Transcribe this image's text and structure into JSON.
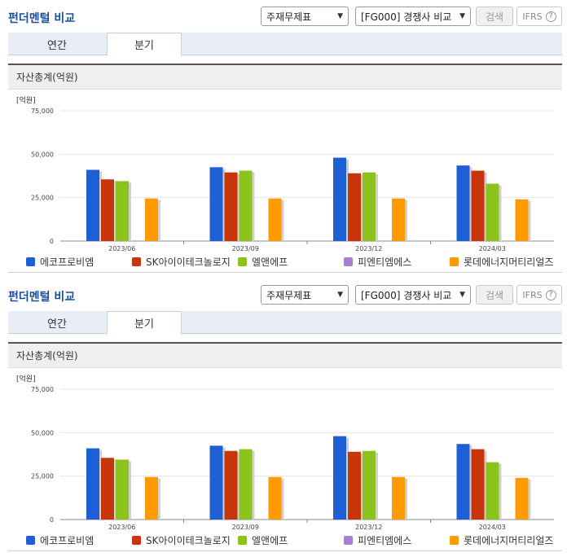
{
  "panels": [
    {
      "title": "펀더멘털 비교",
      "select_statement": "주재무제표",
      "select_group": "[FG000] 경쟁사 비교",
      "search_label": "검색",
      "ifrs_label": "IFRS",
      "help_label": "?",
      "tabs": [
        {
          "label": "연간"
        },
        {
          "label": "분기"
        }
      ],
      "chart_header": "자산총계(억원)"
    },
    {
      "title": "펀더멘털 비교",
      "select_statement": "주재무제표",
      "select_group": "[FG000] 경쟁사 비교",
      "search_label": "검색",
      "ifrs_label": "IFRS",
      "help_label": "?",
      "tabs": [
        {
          "label": "연간"
        },
        {
          "label": "분기"
        }
      ],
      "chart_header": "자산총계(억원)"
    }
  ],
  "chart_data": [
    {
      "type": "bar",
      "title": "자산총계(억원)",
      "unit_label": "[억원]",
      "categories": [
        "2023/06",
        "2023/09",
        "2023/12",
        "2024/03"
      ],
      "ylim": [
        0,
        75000
      ],
      "yticks": [
        0,
        25000,
        50000,
        75000
      ],
      "ytick_labels": [
        "0",
        "25,000",
        "50,000",
        "75,000"
      ],
      "grid": true,
      "legend_position": "bottom",
      "series": [
        {
          "name": "에코프로비엠",
          "color": "#1f5fd6",
          "values": [
            41000,
            42500,
            48000,
            43500
          ]
        },
        {
          "name": "SK아이이테크놀로지",
          "color": "#c9350a",
          "values": [
            35500,
            39500,
            39000,
            40500
          ]
        },
        {
          "name": "엘앤에프",
          "color": "#8cc21c",
          "values": [
            34500,
            40500,
            39500,
            33000
          ]
        },
        {
          "name": "피엔티엠에스",
          "color": "#a77fd6",
          "values": [
            0,
            0,
            0,
            0
          ]
        },
        {
          "name": "롯데에너지머티리얼즈",
          "color": "#ff9a00",
          "values": [
            24500,
            24500,
            24500,
            24000
          ]
        }
      ]
    },
    {
      "type": "bar",
      "title": "자산총계(억원)",
      "unit_label": "[억원]",
      "categories": [
        "2023/06",
        "2023/09",
        "2023/12",
        "2024/03"
      ],
      "ylim": [
        0,
        75000
      ],
      "yticks": [
        0,
        25000,
        50000,
        75000
      ],
      "ytick_labels": [
        "0",
        "25,000",
        "50,000",
        "75,000"
      ],
      "grid": true,
      "legend_position": "bottom",
      "series": [
        {
          "name": "에코프로비엠",
          "color": "#1f5fd6",
          "values": [
            41000,
            42500,
            48000,
            43500
          ]
        },
        {
          "name": "SK아이이테크놀로지",
          "color": "#c9350a",
          "values": [
            35500,
            39500,
            39000,
            40500
          ]
        },
        {
          "name": "엘앤에프",
          "color": "#8cc21c",
          "values": [
            34500,
            40500,
            39500,
            33000
          ]
        },
        {
          "name": "피엔티엠에스",
          "color": "#a77fd6",
          "values": [
            0,
            0,
            0,
            0
          ]
        },
        {
          "name": "롯데에너지머티리얼즈",
          "color": "#ff9a00",
          "values": [
            24500,
            24500,
            24500,
            24000
          ]
        }
      ]
    }
  ]
}
